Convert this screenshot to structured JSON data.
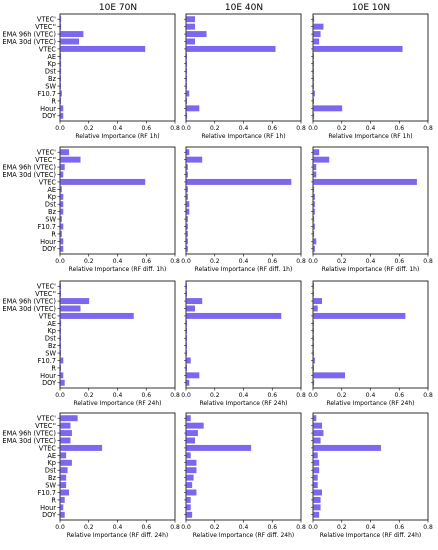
{
  "column_titles": [
    "10E 70N",
    "10E 40N",
    "10E 10N"
  ],
  "colors": {
    "bar": "#7b68ee",
    "axis": "#000000"
  },
  "chart_data": [
    {
      "type": "bar",
      "orientation": "horizontal",
      "row": 0,
      "categories": [
        "VTEC'",
        "VTEC''",
        "EMA 96h (VTEC)",
        "EMA 30d (VTEC)",
        "VTEC",
        "AE",
        "Kp",
        "Dst",
        "Bz",
        "SW",
        "F10.7",
        "R",
        "Hour",
        "DOY"
      ],
      "xlabel": "Relative Importance (RF 1h)",
      "xlim": [
        0,
        0.8
      ],
      "xticks": [
        "0.0",
        "0.2",
        "0.4",
        "0.6",
        "0.8"
      ],
      "panels": [
        {
          "column": "10E 70N",
          "values": [
            0.005,
            0.005,
            0.16,
            0.13,
            0.59,
            0.005,
            0.005,
            0.005,
            0.002,
            0.002,
            0.01,
            0.002,
            0.02,
            0.02
          ]
        },
        {
          "column": "10E 40N",
          "values": [
            0.06,
            0.06,
            0.14,
            0.06,
            0.62,
            0.002,
            0.002,
            0.002,
            0.002,
            0.002,
            0.02,
            0.002,
            0.09,
            0.005
          ]
        },
        {
          "column": "10E 10N",
          "values": [
            0.005,
            0.07,
            0.05,
            0.04,
            0.62,
            0.002,
            0.002,
            0.002,
            0.002,
            0.002,
            0.01,
            0.002,
            0.2,
            0.005
          ]
        }
      ]
    },
    {
      "type": "bar",
      "orientation": "horizontal",
      "row": 1,
      "categories": [
        "VTEC'",
        "VTEC''",
        "EMA 96h (VTEC)",
        "EMA 30d (VTEC)",
        "VTEC",
        "AE",
        "Kp",
        "Dst",
        "Bz",
        "SW",
        "F10.7",
        "R",
        "Hour",
        "DOY"
      ],
      "xlabel": "Relative Importance (RF diff. 1h)",
      "xlim": [
        0,
        0.8
      ],
      "xticks": [
        "0.0",
        "0.2",
        "0.4",
        "0.6",
        "0.8"
      ],
      "panels": [
        {
          "column": "10E 70N",
          "values": [
            0.06,
            0.14,
            0.03,
            0.02,
            0.59,
            0.01,
            0.02,
            0.02,
            0.02,
            0.01,
            0.02,
            0.01,
            0.02,
            0.02
          ]
        },
        {
          "column": "10E 40N",
          "values": [
            0.02,
            0.11,
            0.01,
            0.01,
            0.73,
            0.01,
            0.01,
            0.02,
            0.02,
            0.01,
            0.01,
            0.01,
            0.01,
            0.01
          ]
        },
        {
          "column": "10E 10N",
          "values": [
            0.04,
            0.11,
            0.02,
            0.02,
            0.72,
            0.005,
            0.01,
            0.01,
            0.01,
            0.005,
            0.01,
            0.005,
            0.02,
            0.01
          ]
        }
      ]
    },
    {
      "type": "bar",
      "orientation": "horizontal",
      "row": 2,
      "categories": [
        "VTEC'",
        "VTEC''",
        "EMA 96h (VTEC)",
        "EMA 30d (VTEC)",
        "VTEC",
        "AE",
        "Kp",
        "Dst",
        "Bz",
        "SW",
        "F10.7",
        "R",
        "Hour",
        "DOY"
      ],
      "xlabel": "Relative Importance (RF 24h)",
      "xlim": [
        0,
        0.8
      ],
      "xticks": [
        "0.0",
        "0.2",
        "0.4",
        "0.6",
        "0.8"
      ],
      "panels": [
        {
          "column": "10E 70N",
          "values": [
            0.002,
            0.002,
            0.2,
            0.14,
            0.51,
            0.005,
            0.002,
            0.002,
            0.002,
            0.002,
            0.02,
            0.002,
            0.02,
            0.03
          ]
        },
        {
          "column": "10E 40N",
          "values": [
            0.002,
            0.002,
            0.11,
            0.06,
            0.66,
            0.002,
            0.002,
            0.002,
            0.002,
            0.002,
            0.03,
            0.002,
            0.09,
            0.02
          ]
        },
        {
          "column": "10E 10N",
          "values": [
            0.002,
            0.002,
            0.06,
            0.03,
            0.64,
            0.002,
            0.002,
            0.002,
            0.002,
            0.002,
            0.01,
            0.002,
            0.22,
            0.005
          ]
        }
      ]
    },
    {
      "type": "bar",
      "orientation": "horizontal",
      "row": 3,
      "categories": [
        "VTEC'",
        "VTEC''",
        "EMA 96h (VTEC)",
        "EMA 30d (VTEC)",
        "VTEC",
        "AE",
        "Kp",
        "Dst",
        "Bz",
        "SW",
        "F10.7",
        "R",
        "Hour",
        "DOY"
      ],
      "xlabel": "Relative Importance (RF diff. 24h)",
      "xlim": [
        0,
        0.8
      ],
      "xticks": [
        "0.0",
        "0.2",
        "0.4",
        "0.6",
        "0.8"
      ],
      "panels": [
        {
          "column": "10E 70N",
          "values": [
            0.12,
            0.07,
            0.08,
            0.07,
            0.29,
            0.04,
            0.08,
            0.05,
            0.04,
            0.04,
            0.06,
            0.03,
            0.02,
            0.03
          ]
        },
        {
          "column": "10E 40N",
          "values": [
            0.03,
            0.12,
            0.08,
            0.06,
            0.45,
            0.03,
            0.07,
            0.07,
            0.05,
            0.04,
            0.07,
            0.03,
            0.03,
            0.04
          ]
        },
        {
          "column": "10E 10N",
          "values": [
            0.02,
            0.06,
            0.07,
            0.05,
            0.47,
            0.03,
            0.04,
            0.04,
            0.03,
            0.03,
            0.06,
            0.05,
            0.05,
            0.04
          ]
        }
      ]
    }
  ]
}
